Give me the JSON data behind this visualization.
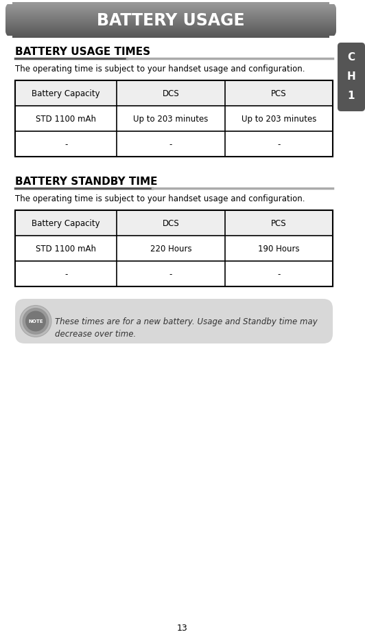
{
  "page_bg": "#ffffff",
  "header_title": "BATTERY USAGE",
  "header_text_color": "#ffffff",
  "tab_bg": "#555555",
  "tab_text_color": "#ffffff",
  "section1_title": "BATTERY USAGE TIMES",
  "section1_subtitle": "The operating time is subject to your handset usage and configuration.",
  "table1_headers": [
    "Battery Capacity",
    "DCS",
    "PCS"
  ],
  "table1_rows": [
    [
      "STD 1100 mAh",
      "Up to 203 minutes",
      "Up to 203 minutes"
    ],
    [
      "-",
      "-",
      "-"
    ]
  ],
  "section2_title": "BATTERY STANDBY TIME",
  "section2_subtitle": "The operating time is subject to your handset usage and configuration.",
  "table2_headers": [
    "Battery Capacity",
    "DCS",
    "PCS"
  ],
  "table2_rows": [
    [
      "STD 1100 mAh",
      "220 Hours",
      "190 Hours"
    ],
    [
      "-",
      "-",
      "-"
    ]
  ],
  "note_text": "These times are for a new battery. Usage and Standby time may\ndecrease over time.",
  "note_bg": "#d8d8d8",
  "table_border_color": "#000000",
  "table_header_bg": "#eeeeee",
  "underline_color_dark": "#555555",
  "underline_color_light": "#aaaaaa",
  "page_number": "13"
}
